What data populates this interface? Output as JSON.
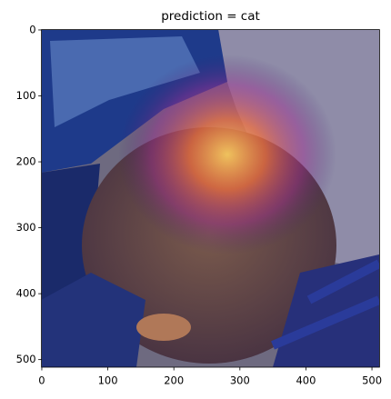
{
  "chart_data": {
    "type": "image",
    "title": "prediction = cat",
    "xlim": [
      -0.5,
      511.5
    ],
    "ylim": [
      511.5,
      -0.5
    ],
    "xticks": [
      0,
      100,
      200,
      300,
      400,
      500
    ],
    "yticks": [
      0,
      100,
      200,
      300,
      400,
      500
    ]
  }
}
